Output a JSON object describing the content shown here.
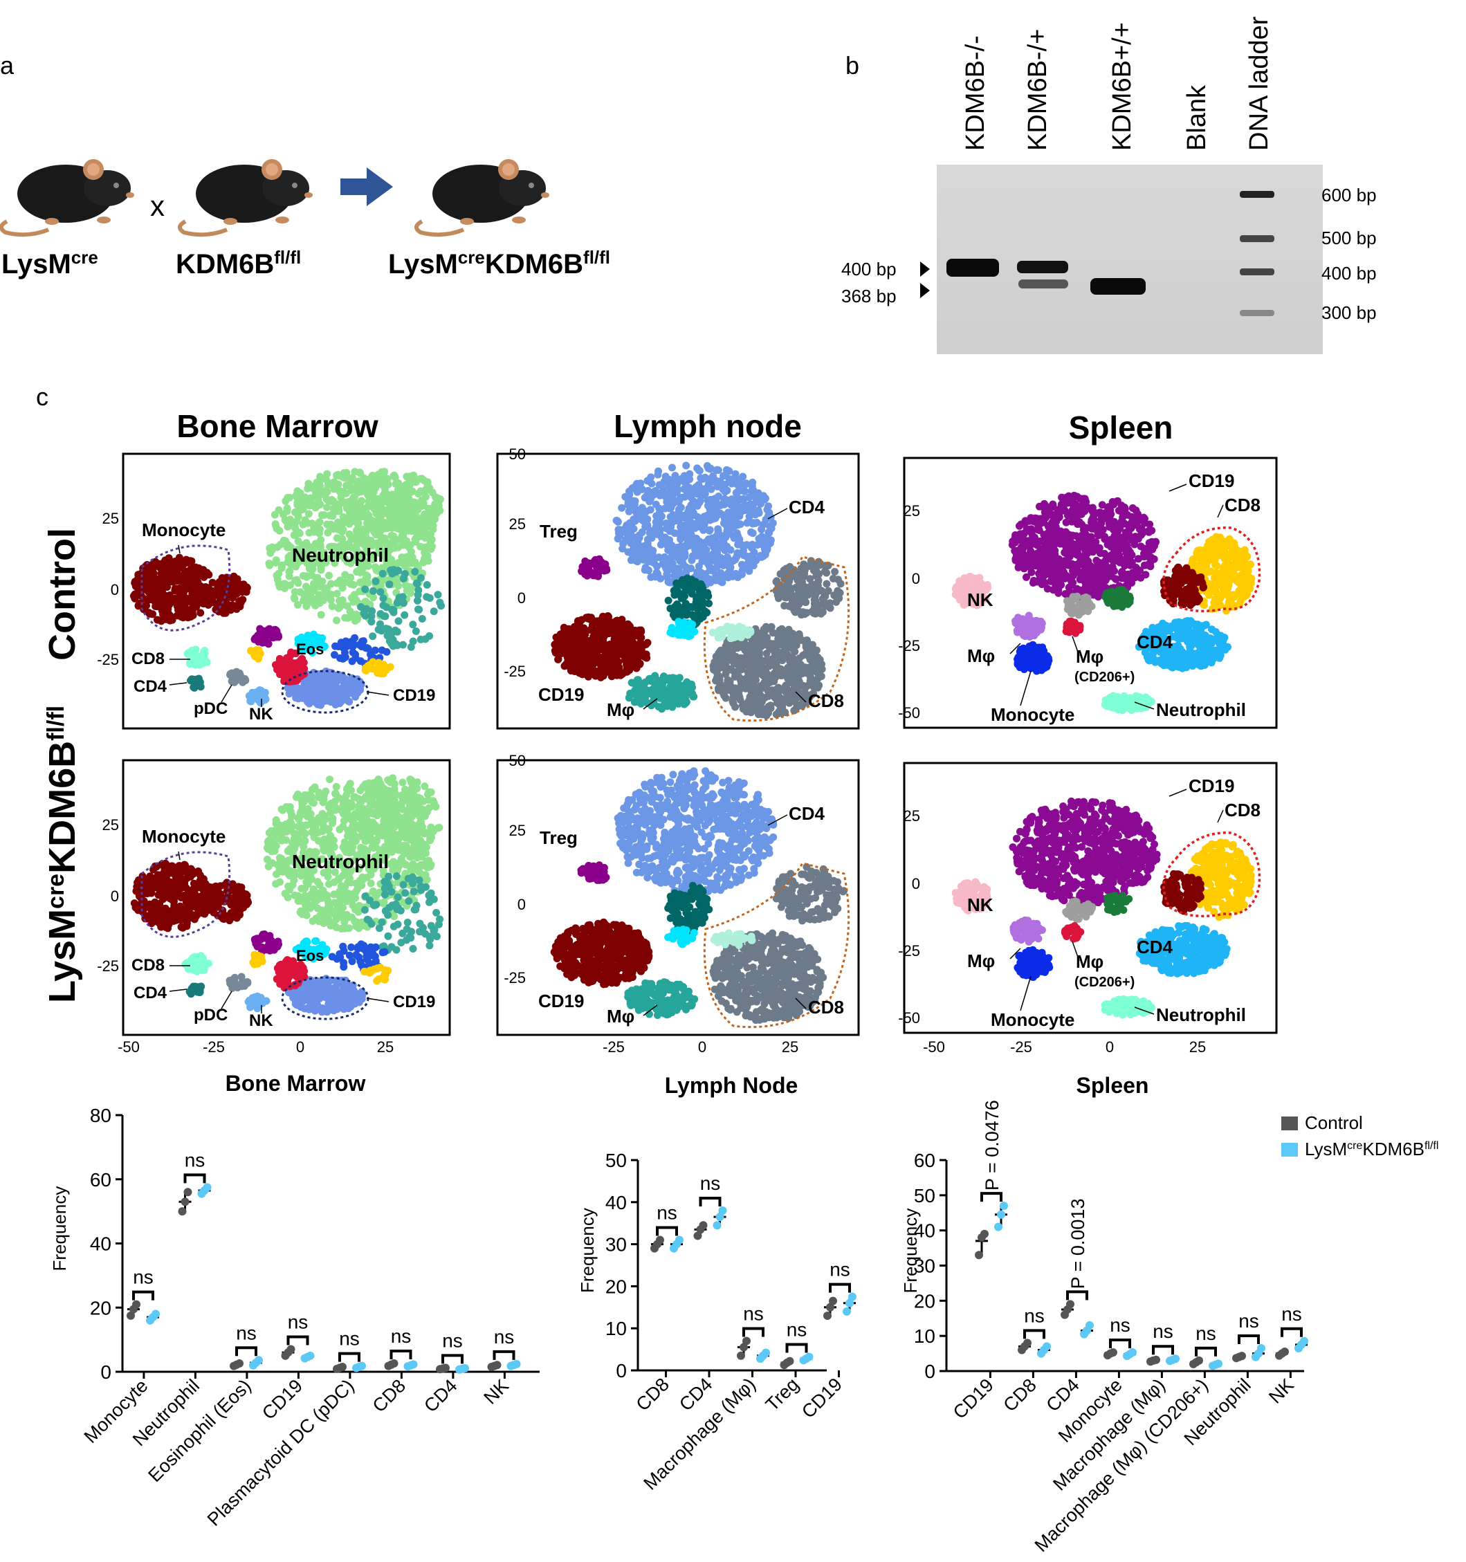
{
  "panels": {
    "a": "a",
    "b": "b",
    "c": "c"
  },
  "panel_a": {
    "mouse1": {
      "base": "LysM",
      "sup": "cre"
    },
    "cross": "x",
    "mouse2": {
      "base": "KDM6B",
      "sup": "fl/fl"
    },
    "result": {
      "base1": "LysM",
      "sup1": "cre",
      "base2": "KDM6B",
      "sup2": "fl/fl"
    },
    "arrow_color": "#2f5597"
  },
  "panel_b": {
    "lanes": [
      "KDM6B-/-",
      "KDM6B-/+",
      "KDM6B+/+",
      "Blank",
      "DNA ladder"
    ],
    "left_markers": [
      "400 bp",
      "368 bp"
    ],
    "ladder": [
      "600 bp",
      "500 bp",
      "400 bp",
      "300 bp"
    ]
  },
  "panel_c": {
    "titles": [
      "Bone Marrow",
      "Lymph node",
      "Spleen"
    ],
    "rows": {
      "control": "Control",
      "ko": {
        "base1": "LysM",
        "sup1": "cre",
        "base2": "KDM6B",
        "sup2": "fl/fl"
      }
    },
    "ticks": {
      "bm_y": [
        "25",
        "0",
        "-25"
      ],
      "ln_y": [
        "50",
        "25",
        "0",
        "-25"
      ],
      "sp_y": [
        "25",
        "0",
        "-25",
        "-50"
      ],
      "bm_x": [
        "-50",
        "-25",
        "0",
        "25"
      ],
      "ln_x": [
        "-25",
        "0",
        "25"
      ],
      "sp_x": [
        "-50",
        "-25",
        "0",
        "25"
      ]
    },
    "bm_labels": [
      "Monocyte",
      "Neutrophil",
      "Eos",
      "CD8",
      "CD4",
      "pDC",
      "NK",
      "CD19"
    ],
    "ln_labels": [
      "CD4",
      "Treg",
      "CD19",
      "Mφ",
      "CD8"
    ],
    "sp_labels": [
      "CD19",
      "CD8",
      "NK",
      "Mφ",
      "Mφ",
      "(CD206+)",
      "CD4",
      "Monocyte",
      "Neutrophil"
    ],
    "cluster_colors": {
      "neutrophil": "#90e38e",
      "monocyte": "#7f0000",
      "cd19_bm": "#6c8fe8",
      "cd4_ln": "#6b97e6",
      "cd8_ln": "#6c7a89",
      "cd19_ln": "#7f0000",
      "mphi_ln": "#26a69a",
      "treg": "#8b008b",
      "cd19_sp": "#8b0a93",
      "cd8_sp": "#ffcc00",
      "cd4_sp": "#1eb4f5",
      "nk_sp": "#f7b8c8",
      "mono_sp": "#0a2ce8",
      "neut_sp": "#7fffd4",
      "mphi_sp": "#b070e0",
      "gate_purple": "#5a3d9a",
      "gate_navy": "#1a2a6e",
      "gate_orange": "#c0651c",
      "gate_red": "#e02020"
    }
  },
  "chart_data": [
    {
      "type": "scatter",
      "title": "Bone Marrow",
      "ylabel": "Frequency",
      "ylim": [
        0,
        80
      ],
      "yticks": [
        "0",
        "20",
        "40",
        "60",
        "80"
      ],
      "categories": [
        "Monocyte",
        "Neutrophil",
        "Eosinophil (Eos)",
        "CD19",
        "Plasmacytoid DC (pDC)",
        "CD8",
        "CD4",
        "NK"
      ],
      "series": [
        {
          "name": "Control",
          "mean": [
            19.5,
            53,
            2.2,
            6,
            1.2,
            2.2,
            1.0,
            1.8
          ],
          "points": [
            [
              17.5,
              19.5,
              21
            ],
            [
              50,
              53,
              56
            ],
            [
              1.8,
              2.2,
              2.6
            ],
            [
              5,
              6,
              7
            ],
            [
              0.9,
              1.2,
              1.5
            ],
            [
              1.8,
              2.2,
              2.6
            ],
            [
              0.8,
              1.0,
              1.2
            ],
            [
              1.5,
              1.8,
              2.1
            ]
          ]
        },
        {
          "name": "LysMcreKDM6Bfl/fl",
          "mean": [
            17,
            56.5,
            2.8,
            4.6,
            1.5,
            2.0,
            0.9,
            2.1
          ],
          "points": [
            [
              16,
              17,
              18
            ],
            [
              55.5,
              56.5,
              57.5
            ],
            [
              2,
              2.8,
              3.6
            ],
            [
              4.2,
              4.6,
              5
            ],
            [
              1.2,
              1.5,
              1.8
            ],
            [
              1.7,
              2.0,
              2.3
            ],
            [
              0.7,
              0.9,
              1.1
            ],
            [
              1.8,
              2.1,
              2.4
            ]
          ]
        }
      ],
      "significance": [
        "ns",
        "ns",
        "ns",
        "ns",
        "ns",
        "ns",
        "ns",
        "ns"
      ]
    },
    {
      "type": "scatter",
      "title": "Lymph Node",
      "ylabel": "Frequency",
      "ylim": [
        0,
        50
      ],
      "yticks": [
        "0",
        "10",
        "20",
        "30",
        "40",
        "50"
      ],
      "categories": [
        "CD8",
        "CD4",
        "Macrophage (Mφ)",
        "Treg",
        "CD19"
      ],
      "series": [
        {
          "name": "Control",
          "mean": [
            30,
            33.5,
            5.5,
            1.8,
            15
          ],
          "points": [
            [
              29,
              30,
              31
            ],
            [
              32,
              33.5,
              34.5
            ],
            [
              3.5,
              5.5,
              7
            ],
            [
              1.3,
              1.8,
              2.2
            ],
            [
              13,
              15,
              16.5
            ]
          ]
        },
        {
          "name": "LysMcreKDM6Bfl/fl",
          "mean": [
            30,
            36.5,
            3.5,
            2.8,
            16
          ],
          "points": [
            [
              29,
              30,
              31
            ],
            [
              34.5,
              36.5,
              38
            ],
            [
              2.8,
              3.5,
              4.2
            ],
            [
              2.4,
              2.8,
              3.2
            ],
            [
              14,
              16,
              17.5
            ]
          ]
        }
      ],
      "significance": [
        "ns",
        "ns",
        "ns",
        "ns",
        "ns"
      ]
    },
    {
      "type": "scatter",
      "title": "Spleen",
      "ylabel": "Frequency",
      "ylim": [
        0,
        60
      ],
      "yticks": [
        "0",
        "10",
        "20",
        "30",
        "40",
        "50",
        "60"
      ],
      "categories": [
        "CD19",
        "CD8",
        "CD4",
        "Monocyte",
        "Macrophage (Mφ)",
        "Macrophage (Mφ) (CD206+)",
        "Neutrophil",
        "NK"
      ],
      "series": [
        {
          "name": "Control",
          "mean": [
            37,
            7,
            17.5,
            5,
            3,
            2.5,
            4,
            5
          ],
          "points": [
            [
              33,
              38,
              39
            ],
            [
              6,
              7,
              8
            ],
            [
              16,
              17.5,
              19
            ],
            [
              4.5,
              5,
              5.3
            ],
            [
              2.7,
              3,
              3.2
            ],
            [
              2,
              2.5,
              3
            ],
            [
              3.7,
              4,
              4.3
            ],
            [
              4.4,
              5,
              5.5
            ]
          ]
        },
        {
          "name": "LysMcreKDM6Bfl/fl",
          "mean": [
            44.5,
            6,
            11.5,
            4.8,
            3.2,
            1.8,
            5,
            7.5
          ],
          "points": [
            [
              41,
              44.5,
              47
            ],
            [
              5,
              6,
              7
            ],
            [
              10.5,
              11.5,
              13
            ],
            [
              4.3,
              4.8,
              5.3
            ],
            [
              2.9,
              3.2,
              3.5
            ],
            [
              1.5,
              1.8,
              2.1
            ],
            [
              4,
              5,
              6.5
            ],
            [
              6.5,
              7.5,
              8.5
            ]
          ]
        }
      ],
      "significance": [
        "P = 0.0476",
        "ns",
        "P = 0.0013",
        "ns",
        "ns",
        "ns",
        "ns",
        "ns"
      ]
    }
  ],
  "legend": {
    "control": "Control",
    "ko": {
      "base1": "LysM",
      "sup1": "cre",
      "base2": "KDM6B",
      "sup2": "fl/fl"
    },
    "control_color": "#555555",
    "ko_color": "#5bc8f5"
  }
}
